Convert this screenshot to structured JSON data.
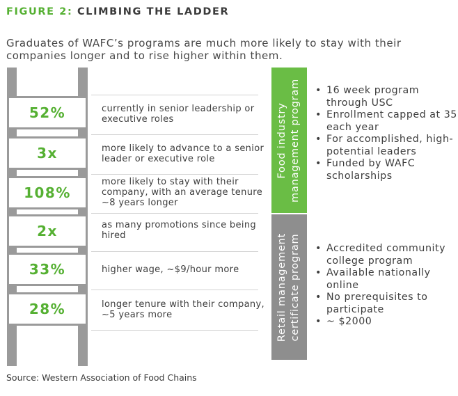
{
  "figure": {
    "label": "FIGURE 2:",
    "title": "CLIMBING THE LADDER"
  },
  "intro": "Graduates of WAFC’s programs are much more likely to stay with their companies longer and to rise higher within them.",
  "stats": [
    {
      "value": "52%",
      "text": "currently in senior leadership or executive roles"
    },
    {
      "value": "3x",
      "text": "more likely to advance to a senior leader or executive role"
    },
    {
      "value": "108%",
      "text": "more likely to stay with their company, with an average tenure ~8 years longer"
    },
    {
      "value": "2x",
      "text": "as many promotions since being hired"
    },
    {
      "value": "33%",
      "text": "higher wage, ~$9/hour more"
    },
    {
      "value": "28%",
      "text": "longer tenure with their company, ~5 years more"
    }
  ],
  "programs": [
    {
      "name_line1": "Food industry",
      "name_line2": "management program",
      "color": "#6abd45",
      "bullets": [
        "16 week program through USC",
        "Enrollment capped at 35 each year",
        "For accomplished, high-potential leaders",
        "Funded by WAFC scholarships"
      ]
    },
    {
      "name_line1": "Retail management",
      "name_line2": "certificate program",
      "color": "#8e8e8e",
      "bullets": [
        "Accredited community college program",
        "Available nationally online",
        "No prerequisites to participate",
        "~ $2000"
      ]
    }
  ],
  "source": "Source: Western Association of Food Chains",
  "colors": {
    "accent": "#55b032",
    "ladder": "#9a9a9a"
  }
}
